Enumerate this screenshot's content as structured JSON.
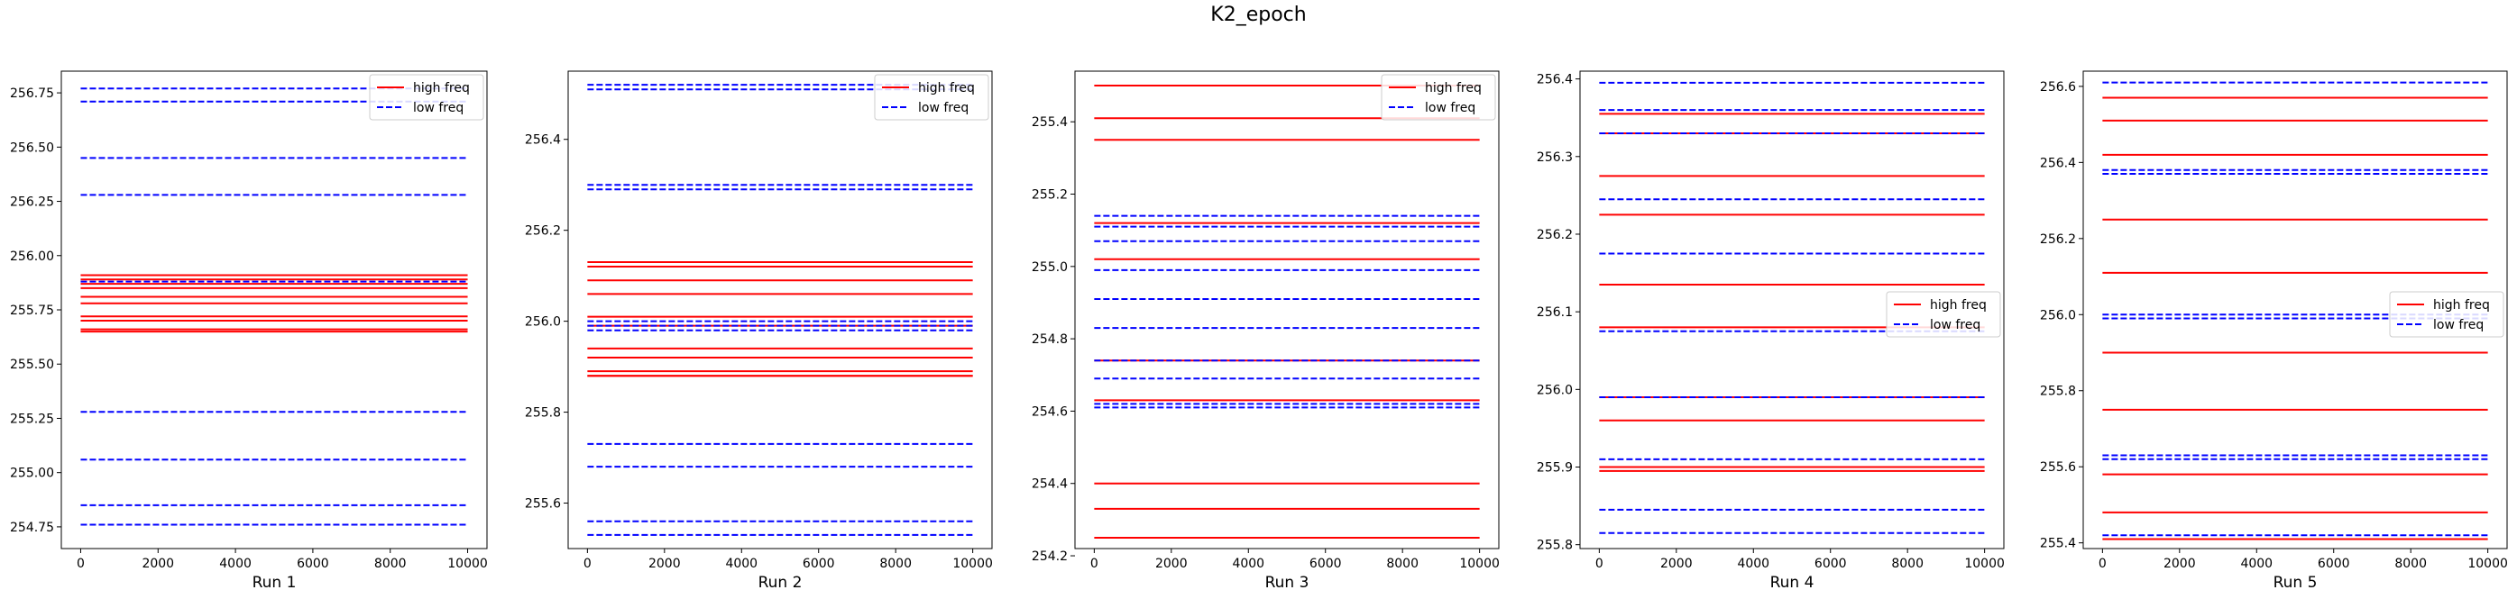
{
  "figure": {
    "title": "K2_epoch"
  },
  "chart_data": [
    {
      "type": "line",
      "xlabel": "Run 1",
      "xlim": [
        -500,
        10500
      ],
      "ylim": [
        254.65,
        256.85
      ],
      "x_ticks": [
        0,
        2000,
        4000,
        6000,
        8000,
        10000
      ],
      "y_ticks": [
        254.75,
        255.0,
        255.25,
        255.5,
        255.75,
        256.0,
        256.25,
        256.5,
        256.75
      ],
      "y_tick_labels": [
        "254.75",
        "255.00",
        "255.25",
        "255.50",
        "255.75",
        "256.00",
        "256.25",
        "256.50",
        "256.75"
      ],
      "legend_position": "top-right",
      "series": [
        {
          "name": "high freq",
          "color": "#ff0000",
          "dash": "solid",
          "values": [
            255.91,
            255.89,
            255.87,
            255.85,
            255.81,
            255.78,
            255.72,
            255.7,
            255.66,
            255.65
          ]
        },
        {
          "name": "low freq",
          "color": "#0000ff",
          "dash": "dashed",
          "values": [
            256.77,
            256.71,
            256.45,
            256.28,
            255.88,
            255.28,
            255.06,
            254.85,
            254.76
          ]
        }
      ]
    },
    {
      "type": "line",
      "xlabel": "Run 2",
      "xlim": [
        -500,
        10500
      ],
      "ylim": [
        255.5,
        256.55
      ],
      "x_ticks": [
        0,
        2000,
        4000,
        6000,
        8000,
        10000
      ],
      "y_ticks": [
        255.6,
        255.8,
        256.0,
        256.2,
        256.4
      ],
      "y_tick_labels": [
        "255.6",
        "255.8",
        "256.0",
        "256.2",
        "256.4"
      ],
      "legend_position": "top-right",
      "series": [
        {
          "name": "high freq",
          "color": "#ff0000",
          "dash": "solid",
          "values": [
            256.13,
            256.12,
            256.09,
            256.06,
            256.01,
            255.99,
            255.94,
            255.92,
            255.89,
            255.88,
            255.88
          ]
        },
        {
          "name": "low freq",
          "color": "#0000ff",
          "dash": "dashed",
          "values": [
            256.52,
            256.51,
            256.3,
            256.29,
            256.0,
            255.99,
            255.98,
            255.73,
            255.68,
            255.56,
            255.53
          ]
        }
      ]
    },
    {
      "type": "line",
      "xlabel": "Run 3",
      "xlim": [
        -500,
        10500
      ],
      "ylim": [
        254.22,
        255.54
      ],
      "x_ticks": [
        0,
        2000,
        4000,
        6000,
        8000,
        10000
      ],
      "y_ticks": [
        254.2,
        254.4,
        254.6,
        254.8,
        255.0,
        255.2,
        255.4
      ],
      "y_tick_labels": [
        "254.2",
        "254.4",
        "254.6",
        "254.8",
        "255.0",
        "255.2",
        "255.4"
      ],
      "legend_position": "top-right",
      "series": [
        {
          "name": "high freq",
          "color": "#ff0000",
          "dash": "solid",
          "values": [
            255.5,
            255.41,
            255.35,
            255.12,
            255.02,
            254.74,
            254.63,
            254.4,
            254.33,
            254.25
          ]
        },
        {
          "name": "low freq",
          "color": "#0000ff",
          "dash": "dashed",
          "values": [
            255.14,
            255.11,
            255.07,
            254.99,
            254.91,
            254.83,
            254.74,
            254.69,
            254.62,
            254.61
          ]
        }
      ]
    },
    {
      "type": "line",
      "xlabel": "Run 4",
      "xlim": [
        -500,
        10500
      ],
      "ylim": [
        255.795,
        256.41
      ],
      "x_ticks": [
        0,
        2000,
        4000,
        6000,
        8000,
        10000
      ],
      "y_ticks": [
        255.8,
        255.9,
        256.0,
        256.1,
        256.2,
        256.3,
        256.4
      ],
      "y_tick_labels": [
        "255.8",
        "255.9",
        "256.0",
        "256.1",
        "256.2",
        "256.3",
        "256.4"
      ],
      "legend_position": "center-right",
      "series": [
        {
          "name": "high freq",
          "color": "#ff0000",
          "dash": "solid",
          "values": [
            256.355,
            256.33,
            256.275,
            256.225,
            256.135,
            256.08,
            255.99,
            255.96,
            255.9,
            255.895
          ]
        },
        {
          "name": "low freq",
          "color": "#0000ff",
          "dash": "dashed",
          "values": [
            256.395,
            256.36,
            256.33,
            256.245,
            256.175,
            256.075,
            255.99,
            255.91,
            255.845,
            255.815
          ]
        }
      ]
    },
    {
      "type": "line",
      "xlabel": "Run 5",
      "xlim": [
        -500,
        10500
      ],
      "ylim": [
        255.385,
        256.64
      ],
      "x_ticks": [
        0,
        2000,
        4000,
        6000,
        8000,
        10000
      ],
      "y_ticks": [
        255.4,
        255.6,
        255.8,
        256.0,
        256.2,
        256.4,
        256.6
      ],
      "y_tick_labels": [
        "255.4",
        "255.6",
        "255.8",
        "256.0",
        "256.2",
        "256.4",
        "256.6"
      ],
      "legend_position": "center-right",
      "series": [
        {
          "name": "high freq",
          "color": "#ff0000",
          "dash": "solid",
          "values": [
            256.57,
            256.51,
            256.42,
            256.25,
            256.11,
            255.9,
            255.75,
            255.58,
            255.48,
            255.41
          ]
        },
        {
          "name": "low freq",
          "color": "#0000ff",
          "dash": "dashed",
          "values": [
            256.61,
            256.38,
            256.37,
            256.0,
            255.99,
            255.63,
            255.62,
            255.42
          ]
        }
      ]
    }
  ]
}
